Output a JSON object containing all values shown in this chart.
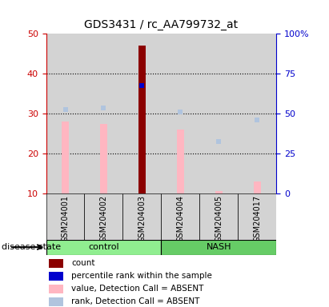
{
  "title": "GDS3431 / rc_AA799732_at",
  "samples": [
    "GSM204001",
    "GSM204002",
    "GSM204003",
    "GSM204004",
    "GSM204005",
    "GSM204017"
  ],
  "bar_values_absent": [
    28,
    27.5,
    null,
    26,
    10.5,
    13
  ],
  "rank_absent": [
    31,
    31.5,
    null,
    30.5,
    23,
    28.5
  ],
  "count_value": [
    null,
    null,
    47,
    null,
    null,
    null
  ],
  "percentile_rank": [
    null,
    null,
    37,
    null,
    null,
    null
  ],
  "ylim_left": [
    10,
    50
  ],
  "ylim_right": [
    0,
    100
  ],
  "left_ticks": [
    10,
    20,
    30,
    40,
    50
  ],
  "right_ticks": [
    0,
    25,
    50,
    75,
    100
  ],
  "color_count": "#8B0000",
  "color_percentile": "#0000CD",
  "color_value_absent": "#FFB6C1",
  "color_rank_absent": "#B0C4DE",
  "color_control_bg": "#90EE90",
  "color_nash_bg": "#66CC66",
  "color_sample_bg": "#D3D3D3",
  "left_label_color": "#CC0000",
  "right_label_color": "#0000CC",
  "legend_items": [
    {
      "color": "#8B0000",
      "label": "count"
    },
    {
      "color": "#0000CD",
      "label": "percentile rank within the sample"
    },
    {
      "color": "#FFB6C1",
      "label": "value, Detection Call = ABSENT"
    },
    {
      "color": "#B0C4DE",
      "label": "rank, Detection Call = ABSENT"
    }
  ]
}
